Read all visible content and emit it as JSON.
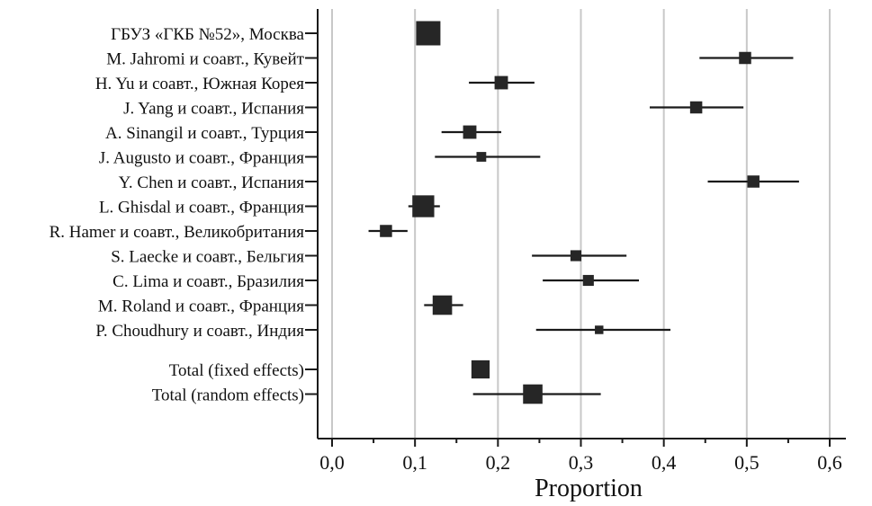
{
  "chart_data": {
    "type": "forest",
    "xlabel": "Proportion",
    "xlim": [
      0.0,
      0.6
    ],
    "xticks": [
      {
        "value": 0.0,
        "label": "0,0"
      },
      {
        "value": 0.1,
        "label": "0,1"
      },
      {
        "value": 0.2,
        "label": "0,2"
      },
      {
        "value": 0.3,
        "label": "0,3"
      },
      {
        "value": 0.4,
        "label": "0,4"
      },
      {
        "value": 0.5,
        "label": "0,5"
      },
      {
        "value": 0.6,
        "label": "0,6"
      }
    ],
    "grid": true,
    "studies": [
      {
        "label": "ГБУЗ «ГКБ №52», Москва",
        "estimate": 0.116,
        "lower": null,
        "upper": null,
        "weight": 1.0
      },
      {
        "label": "M. Jahromi и соавт., Кувейт",
        "estimate": 0.498,
        "lower": 0.443,
        "upper": 0.556,
        "weight": 0.5
      },
      {
        "label": "H. Yu и соавт., Южная Корея",
        "estimate": 0.204,
        "lower": 0.165,
        "upper": 0.244,
        "weight": 0.55
      },
      {
        "label": "J. Yang и соавт., Испания",
        "estimate": 0.439,
        "lower": 0.383,
        "upper": 0.496,
        "weight": 0.5
      },
      {
        "label": "A. Sinangil и соавт., Турция",
        "estimate": 0.166,
        "lower": 0.132,
        "upper": 0.204,
        "weight": 0.55
      },
      {
        "label": "J. Augusto и соавт., Франция",
        "estimate": 0.18,
        "lower": 0.124,
        "upper": 0.251,
        "weight": 0.4
      },
      {
        "label": "Y. Chen и соавт., Испания",
        "estimate": 0.508,
        "lower": 0.453,
        "upper": 0.563,
        "weight": 0.5
      },
      {
        "label": "L. Ghisdal и соавт., Франция",
        "estimate": 0.11,
        "lower": 0.092,
        "upper": 0.13,
        "weight": 0.9
      },
      {
        "label": "R. Hamer и соавт., Великобритания",
        "estimate": 0.065,
        "lower": 0.044,
        "upper": 0.091,
        "weight": 0.5
      },
      {
        "label": "S. Laecke и соавт., Бельгия",
        "estimate": 0.294,
        "lower": 0.241,
        "upper": 0.355,
        "weight": 0.45
      },
      {
        "label": "C. Lima и соавт., Бразилия",
        "estimate": 0.309,
        "lower": 0.254,
        "upper": 0.37,
        "weight": 0.45
      },
      {
        "label": "M. Roland и соавт., Франция",
        "estimate": 0.133,
        "lower": 0.111,
        "upper": 0.158,
        "weight": 0.8
      },
      {
        "label": "P. Choudhury и соавт., Индия",
        "estimate": 0.322,
        "lower": 0.246,
        "upper": 0.408,
        "weight": 0.35
      }
    ],
    "totals": [
      {
        "label": "Total (fixed effects)",
        "estimate": 0.179,
        "lower": null,
        "upper": null,
        "weight": 0.75
      },
      {
        "label": "Total (random effects)",
        "estimate": 0.242,
        "lower": 0.17,
        "upper": 0.324,
        "weight": 0.8
      }
    ]
  }
}
